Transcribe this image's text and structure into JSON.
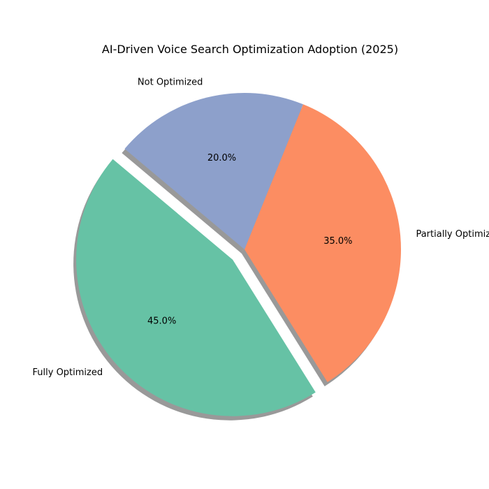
{
  "chart_data": {
    "type": "pie",
    "title": "AI-Driven Voice Search Optimization Adoption (2025)",
    "categories": [
      "Fully Optimized",
      "Partially Optimized",
      "Not Optimized"
    ],
    "values": [
      45.0,
      35.0,
      20.0
    ],
    "value_labels": [
      "45.0%",
      "35.0%",
      "20.0%"
    ],
    "colors": [
      "#66c2a5",
      "#fc8d62",
      "#8da0cb"
    ],
    "explode": [
      0.1,
      0,
      0
    ],
    "start_angle_deg": 140,
    "direction": "counterclockwise",
    "shadow": true,
    "legend": "none"
  }
}
